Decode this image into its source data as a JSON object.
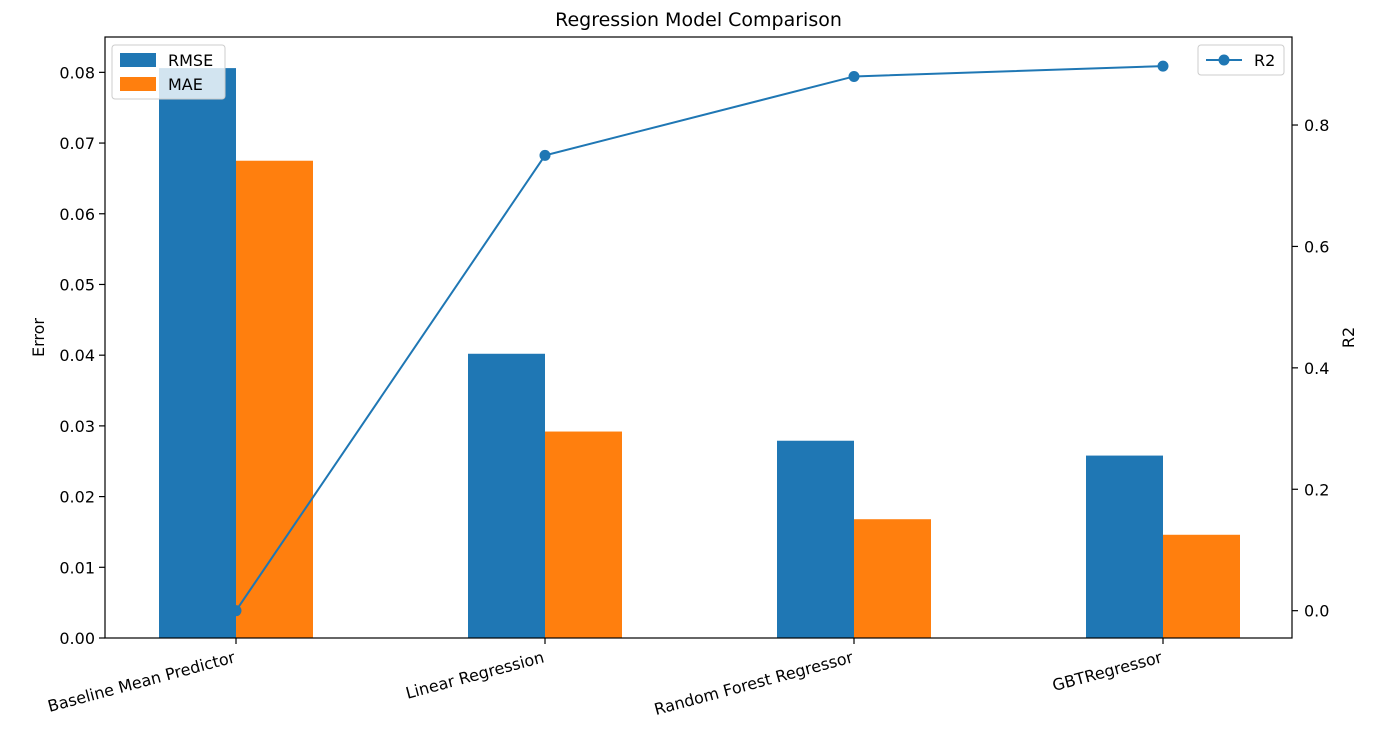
{
  "chart_data": {
    "type": "bar",
    "title": "Regression Model Comparison",
    "categories": [
      "Baseline Mean Predictor",
      "Linear Regression",
      "Random Forest Regressor",
      "GBTRegressor"
    ],
    "ylabel": "Error",
    "ylim": [
      0,
      0.085
    ],
    "yticks": [
      "0.00",
      "0.01",
      "0.02",
      "0.03",
      "0.04",
      "0.05",
      "0.06",
      "0.07",
      "0.08"
    ],
    "series": [
      {
        "name": "RMSE",
        "color": "#1f77b4",
        "values": [
          0.0806,
          0.0402,
          0.0279,
          0.0258
        ]
      },
      {
        "name": "MAE",
        "color": "#ff7f0e",
        "values": [
          0.0675,
          0.0292,
          0.0168,
          0.0146
        ]
      }
    ],
    "y2label": "R2",
    "y2lim": [
      -0.045,
      0.945
    ],
    "y2ticks": [
      "0.0",
      "0.2",
      "0.4",
      "0.6",
      "0.8"
    ],
    "line_series": {
      "name": "R2",
      "color": "#1f77b4",
      "values": [
        0.0,
        0.75,
        0.88,
        0.897
      ]
    },
    "legend_bars": "top-left",
    "legend_line": "top-right",
    "grid": false
  }
}
